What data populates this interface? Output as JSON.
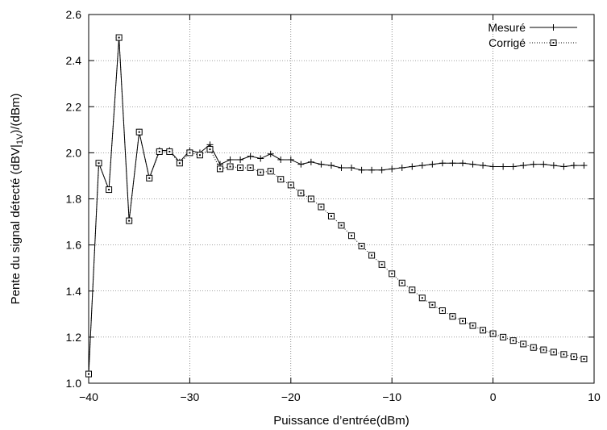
{
  "chart_data": {
    "type": "line",
    "xlabel": "Puissance d’entrée(dBm)",
    "ylabel_parts": {
      "before": "Pente du signal détecté (dBV|",
      "subscript": "1V",
      "after": ")/(dBm)"
    },
    "xlim": [
      -40,
      10
    ],
    "ylim": [
      1.0,
      2.6
    ],
    "xticks": [
      -40,
      -30,
      -20,
      -10,
      0,
      10
    ],
    "yticks": [
      1.0,
      1.2,
      1.4,
      1.6,
      1.8,
      2.0,
      2.2,
      2.4,
      2.6
    ],
    "xtick_labels": [
      "−40",
      "−30",
      "−20",
      "−10",
      "0",
      "10"
    ],
    "ytick_labels": [
      "1.0",
      "1.2",
      "1.4",
      "1.6",
      "1.8",
      "2.0",
      "2.2",
      "2.4",
      "2.6"
    ],
    "grid": true,
    "legend_position": "top-right",
    "series": [
      {
        "name": "Mesuré",
        "marker": "plus",
        "line": "solid",
        "x": [
          -40,
          -39,
          -38,
          -37,
          -36,
          -35,
          -34,
          -33,
          -32,
          -31,
          -30,
          -29,
          -28,
          -27,
          -26,
          -25,
          -24,
          -23,
          -22,
          -21,
          -20,
          -19,
          -18,
          -17,
          -16,
          -15,
          -14,
          -13,
          -12,
          -11,
          -10,
          -9,
          -8,
          -7,
          -6,
          -5,
          -4,
          -3,
          -2,
          -1,
          0,
          1,
          2,
          3,
          4,
          5,
          6,
          7,
          8,
          9
        ],
        "y": [
          1.04,
          1.955,
          1.84,
          2.5,
          1.705,
          2.09,
          1.89,
          2.01,
          2.01,
          1.96,
          2.01,
          2.0,
          2.035,
          1.95,
          1.97,
          1.97,
          1.985,
          1.975,
          1.995,
          1.97,
          1.97,
          1.95,
          1.96,
          1.95,
          1.945,
          1.935,
          1.935,
          1.925,
          1.925,
          1.925,
          1.93,
          1.935,
          1.94,
          1.945,
          1.95,
          1.955,
          1.955,
          1.955,
          1.95,
          1.945,
          1.94,
          1.94,
          1.94,
          1.945,
          1.95,
          1.95,
          1.945,
          1.94,
          1.945,
          1.945
        ]
      },
      {
        "name": "Corrigé",
        "marker": "square-dot",
        "line": "dotted",
        "x": [
          -40,
          -39,
          -38,
          -37,
          -36,
          -35,
          -34,
          -33,
          -32,
          -31,
          -30,
          -29,
          -28,
          -27,
          -26,
          -25,
          -24,
          -23,
          -22,
          -21,
          -20,
          -19,
          -18,
          -17,
          -16,
          -15,
          -14,
          -13,
          -12,
          -11,
          -10,
          -9,
          -8,
          -7,
          -6,
          -5,
          -4,
          -3,
          -2,
          -1,
          0,
          1,
          2,
          3,
          4,
          5,
          6,
          7,
          8,
          9
        ],
        "y": [
          1.04,
          1.955,
          1.84,
          2.5,
          1.705,
          2.09,
          1.89,
          2.005,
          2.005,
          1.955,
          2.0,
          1.99,
          2.015,
          1.93,
          1.94,
          1.935,
          1.935,
          1.915,
          1.92,
          1.885,
          1.86,
          1.825,
          1.8,
          1.765,
          1.725,
          1.685,
          1.64,
          1.595,
          1.555,
          1.515,
          1.475,
          1.435,
          1.405,
          1.37,
          1.34,
          1.315,
          1.29,
          1.27,
          1.25,
          1.23,
          1.215,
          1.2,
          1.185,
          1.17,
          1.155,
          1.145,
          1.135,
          1.125,
          1.115,
          1.105
        ]
      }
    ]
  }
}
